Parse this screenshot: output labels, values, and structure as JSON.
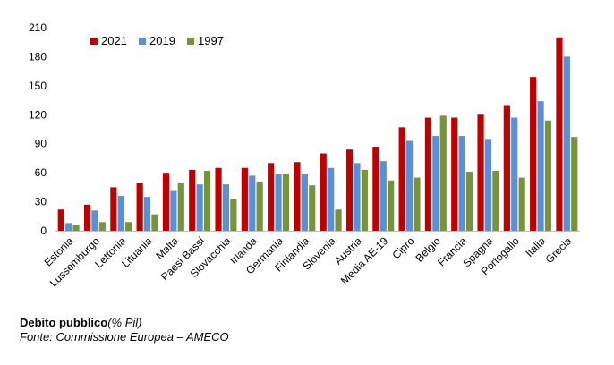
{
  "caption": {
    "title": "Debito pubblico",
    "unit": "(% Pil)",
    "source": "Fonte: Commissione Europea – AMECO"
  },
  "chart_data": {
    "type": "bar",
    "ylim": [
      0,
      210
    ],
    "yticks": [
      0,
      30,
      60,
      90,
      120,
      150,
      180,
      210
    ],
    "grid": false,
    "legend_position": "top-left",
    "categories": [
      "Estonia",
      "Lussemburgo",
      "Lettonia",
      "Lituania",
      "Malta",
      "Paesi Bassi",
      "Slovacchia",
      "Irlanda",
      "Germania",
      "Finlandia",
      "Slovenia",
      "Austria",
      "Media AE-19",
      "Cipro",
      "Belgio",
      "Francia",
      "Spagna",
      "Portogallo",
      "Italia",
      "Grecia"
    ],
    "series": [
      {
        "name": "2021",
        "color": "#c00000",
        "values": [
          22,
          27,
          45,
          50,
          60,
          63,
          65,
          65,
          70,
          71,
          80,
          84,
          87,
          107,
          117,
          117,
          121,
          130,
          159,
          200
        ]
      },
      {
        "name": "2019",
        "color": "#5b8fd6",
        "values": [
          8,
          21,
          36,
          35,
          42,
          48,
          48,
          57,
          59,
          59,
          65,
          70,
          72,
          93,
          98,
          98,
          95,
          117,
          134,
          180
        ]
      },
      {
        "name": "1997",
        "color": "#77933c",
        "values": [
          6,
          9,
          9,
          17,
          50,
          62,
          33,
          51,
          59,
          47,
          22,
          63,
          52,
          55,
          119,
          61,
          62,
          55,
          114,
          97
        ]
      }
    ]
  }
}
